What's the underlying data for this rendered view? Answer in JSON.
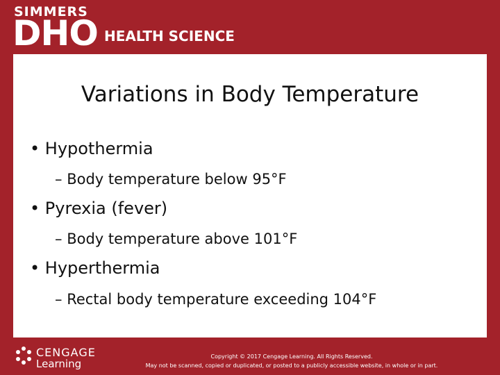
{
  "header": {
    "brand_top": "SIMMERS",
    "brand_main": "DHO",
    "brand_sub": "HEALTH SCIENCE"
  },
  "slide": {
    "title": "Variations in Body Temperature",
    "bullets": [
      {
        "text": "Hypothermia",
        "sub": "Body temperature below 95°F"
      },
      {
        "text": "Pyrexia (fever)",
        "sub": "Body temperature above 101°F"
      },
      {
        "text": "Hyperthermia",
        "sub": "Rectal body temperature exceeding 104°F"
      }
    ]
  },
  "footer": {
    "logo_top": "CENGAGE",
    "logo_bottom": "Learning",
    "copyright": "Copyright © 2017 Cengage Learning. All Rights Reserved.",
    "notice": "May not be scanned, copied or duplicated, or posted to a publicly accessible website, in whole or in part."
  }
}
